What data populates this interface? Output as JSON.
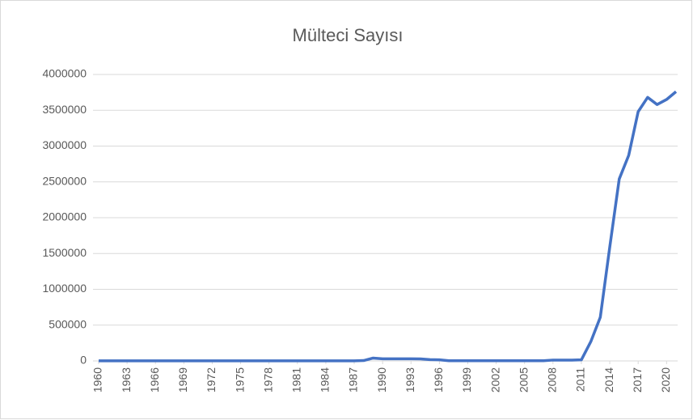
{
  "chart_data": {
    "type": "line",
    "title": "Mülteci Sayısı",
    "x": [
      1960,
      1961,
      1962,
      1963,
      1964,
      1965,
      1966,
      1967,
      1968,
      1969,
      1970,
      1971,
      1972,
      1973,
      1974,
      1975,
      1976,
      1977,
      1978,
      1979,
      1980,
      1981,
      1982,
      1983,
      1984,
      1985,
      1986,
      1987,
      1988,
      1989,
      1990,
      1991,
      1992,
      1993,
      1994,
      1995,
      1996,
      1997,
      1998,
      1999,
      2000,
      2001,
      2002,
      2003,
      2004,
      2005,
      2006,
      2007,
      2008,
      2009,
      2010,
      2011,
      2012,
      2013,
      2014,
      2015,
      2016,
      2017,
      2018,
      2019,
      2020,
      2021
    ],
    "series": [
      {
        "name": "Mülteci Sayısı",
        "color": "#4472c4",
        "values": [
          2000,
          2000,
          2000,
          2000,
          2000,
          2000,
          2000,
          2000,
          2000,
          2000,
          2000,
          2000,
          2000,
          2000,
          2000,
          2000,
          2000,
          2000,
          2000,
          2000,
          2000,
          2000,
          2000,
          2000,
          2000,
          2000,
          2000,
          2000,
          5000,
          40000,
          30000,
          30000,
          30000,
          30000,
          28000,
          18000,
          15000,
          3000,
          3000,
          3000,
          3000,
          3000,
          3000,
          3000,
          3000,
          3000,
          3000,
          3000,
          12000,
          12000,
          11000,
          15000,
          270000,
          610000,
          1590000,
          2540000,
          2870000,
          3480000,
          3680000,
          3580000,
          3650000,
          3760000
        ]
      }
    ],
    "xlim": [
      1960,
      2021
    ],
    "xticks": [
      1960,
      1963,
      1966,
      1969,
      1972,
      1975,
      1978,
      1981,
      1984,
      1987,
      1990,
      1993,
      1996,
      1999,
      2002,
      2005,
      2008,
      2011,
      2014,
      2017,
      2020
    ],
    "ylim": [
      0,
      4000000
    ],
    "yticks": [
      0,
      500000,
      1000000,
      1500000,
      2000000,
      2500000,
      3000000,
      3500000,
      4000000
    ],
    "grid": true
  }
}
